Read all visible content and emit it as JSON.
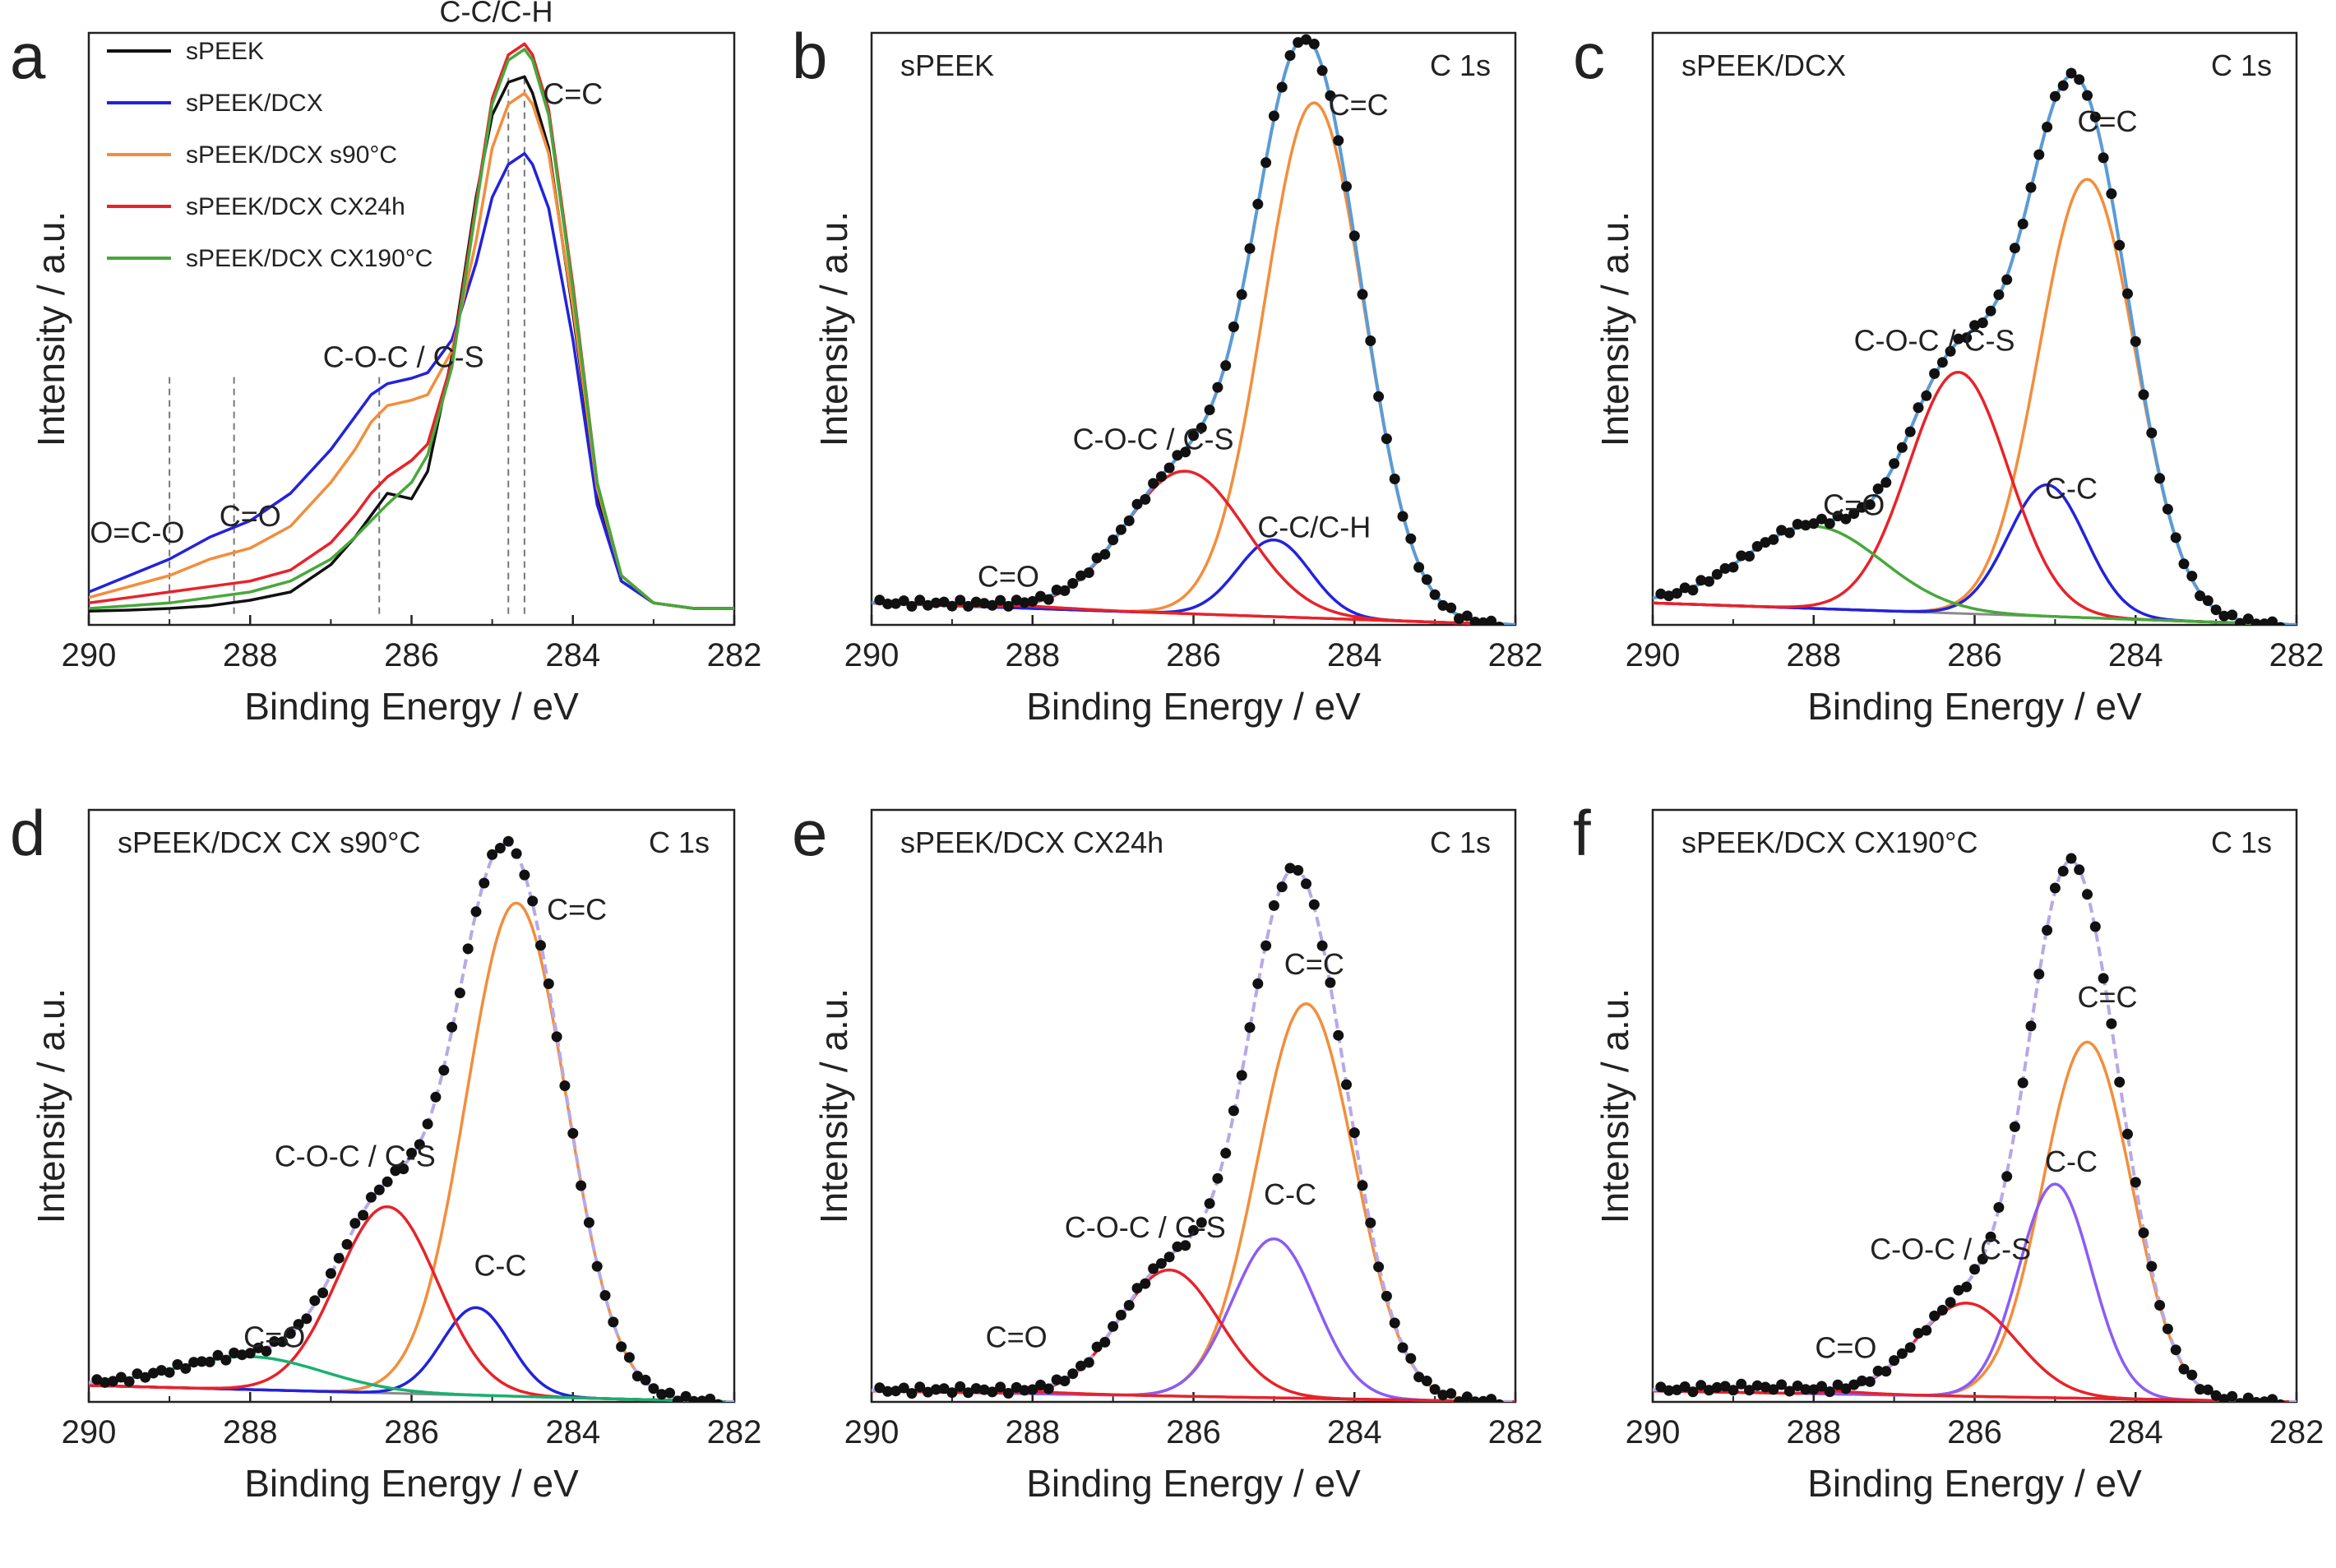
{
  "figure": {
    "description": "XPS C 1s spectra of sPEEK membranes",
    "colors": {
      "black": "#111111",
      "blue": "#2222dd",
      "orange": "#f28e3c",
      "red": "#e8222a",
      "green": "#47a83c",
      "fit": "#5b9bd5",
      "violet": "#8a5cf6",
      "baseline": "#888888",
      "teal": "#19b070",
      "envelope": "#b8a8e8"
    }
  },
  "chart_data": [
    {
      "panel": "a",
      "type": "line",
      "title": "",
      "xlabel": "Binding Energy / eV",
      "ylabel": "Intensity / a.u.",
      "xlim": [
        290,
        282
      ],
      "xticks": [
        "290",
        "288",
        "286",
        "284",
        "282"
      ],
      "legend": [
        {
          "name": "sPEEK",
          "color": "#111111"
        },
        {
          "name": "sPEEK/DCX",
          "color": "#2222dd"
        },
        {
          "name": "sPEEK/DCX s90°C",
          "color": "#f28e3c"
        },
        {
          "name": "sPEEK/DCX CX24h",
          "color": "#e8222a"
        },
        {
          "name": "sPEEK/DCX CX190°C",
          "color": "#47a83c"
        }
      ],
      "series": [
        {
          "name": "sPEEK",
          "color": "#111111",
          "x": [
            290,
            289.5,
            289,
            288.5,
            288,
            287.5,
            287,
            286.7,
            286.5,
            286.3,
            286,
            285.8,
            285.5,
            285.2,
            285,
            284.8,
            284.6,
            284.5,
            284.3,
            284,
            283.7,
            283.4,
            283,
            282.5,
            282
          ],
          "y": [
            0.005,
            0.007,
            0.01,
            0.015,
            0.025,
            0.04,
            0.09,
            0.14,
            0.18,
            0.22,
            0.21,
            0.26,
            0.47,
            0.76,
            0.91,
            0.97,
            0.98,
            0.95,
            0.85,
            0.55,
            0.22,
            0.06,
            0.02,
            0.01,
            0.01
          ]
        },
        {
          "name": "sPEEK/DCX",
          "color": "#2222dd",
          "x": [
            290,
            289.5,
            289,
            288.5,
            288,
            287.5,
            287,
            286.7,
            286.5,
            286.3,
            286,
            285.8,
            285.5,
            285.2,
            285,
            284.8,
            284.6,
            284.5,
            284.3,
            284,
            283.7,
            283.4,
            283,
            282.5,
            282
          ],
          "y": [
            0.04,
            0.07,
            0.1,
            0.14,
            0.17,
            0.22,
            0.3,
            0.36,
            0.4,
            0.42,
            0.43,
            0.44,
            0.5,
            0.64,
            0.76,
            0.82,
            0.84,
            0.82,
            0.74,
            0.5,
            0.2,
            0.06,
            0.02,
            0.01,
            0.01
          ]
        },
        {
          "name": "sPEEK/DCX s90°C",
          "color": "#f28e3c",
          "x": [
            290,
            289.5,
            289,
            288.5,
            288,
            287.5,
            287,
            286.7,
            286.5,
            286.3,
            286,
            285.8,
            285.5,
            285.2,
            285,
            284.8,
            284.6,
            284.5,
            284.3,
            284,
            283.7,
            283.4,
            283,
            282.5,
            282
          ],
          "y": [
            0.03,
            0.05,
            0.07,
            0.1,
            0.12,
            0.16,
            0.24,
            0.3,
            0.35,
            0.38,
            0.39,
            0.4,
            0.48,
            0.68,
            0.85,
            0.93,
            0.95,
            0.93,
            0.84,
            0.56,
            0.23,
            0.07,
            0.02,
            0.01,
            0.01
          ]
        },
        {
          "name": "sPEEK/DCX CX24h",
          "color": "#e8222a",
          "x": [
            290,
            289.5,
            289,
            288.5,
            288,
            287.5,
            287,
            286.7,
            286.5,
            286.3,
            286,
            285.8,
            285.5,
            285.2,
            285,
            284.8,
            284.6,
            284.5,
            284.3,
            284,
            283.7,
            283.4,
            283,
            282.5,
            282
          ],
          "y": [
            0.02,
            0.03,
            0.04,
            0.05,
            0.06,
            0.08,
            0.13,
            0.18,
            0.22,
            0.25,
            0.28,
            0.31,
            0.46,
            0.75,
            0.94,
            1.02,
            1.04,
            1.02,
            0.92,
            0.6,
            0.24,
            0.07,
            0.02,
            0.01,
            0.01
          ]
        },
        {
          "name": "sPEEK/DCX CX190°C",
          "color": "#47a83c",
          "x": [
            290,
            289.5,
            289,
            288.5,
            288,
            287.5,
            287,
            286.7,
            286.5,
            286.3,
            286,
            285.8,
            285.5,
            285.2,
            285,
            284.8,
            284.6,
            284.5,
            284.3,
            284,
            283.7,
            283.4,
            283,
            282.5,
            282
          ],
          "y": [
            0.01,
            0.015,
            0.02,
            0.03,
            0.04,
            0.06,
            0.1,
            0.14,
            0.17,
            0.2,
            0.24,
            0.29,
            0.45,
            0.74,
            0.93,
            1.01,
            1.03,
            1.01,
            0.91,
            0.59,
            0.24,
            0.07,
            0.02,
            0.01,
            0.01
          ]
        }
      ],
      "ylim": [
        0,
        1.08
      ],
      "vlines": [
        289.0,
        288.2,
        286.4,
        284.8,
        284.6
      ],
      "annotations": [
        "O=C-O",
        "C=O",
        "C-O-C / C-S",
        "C-C/C-H",
        "C=C"
      ]
    },
    {
      "panel": "b",
      "type": "line",
      "title": "sPEEK",
      "label_right": "C 1s",
      "xlabel": "Binding Energy / eV",
      "ylabel": "Intensity / a.u.",
      "xlim": [
        290,
        282
      ],
      "xticks": [
        "290",
        "288",
        "286",
        "284",
        "282"
      ],
      "ylim": [
        0,
        1.08
      ],
      "baseline": {
        "x": [
          290,
          282
        ],
        "y": [
          0.04,
          0.0
        ]
      },
      "components": [
        {
          "label": "C=C",
          "color": "#f28e3c",
          "center": 284.5,
          "height": 0.94,
          "width": 0.62
        },
        {
          "label": "C-C/C-H",
          "color": "#2222dd",
          "center": 285.0,
          "height": 0.14,
          "width": 0.45
        },
        {
          "label": "C-O-C / C-S",
          "color": "#e8222a",
          "center": 286.1,
          "height": 0.26,
          "width": 0.75
        },
        {
          "label": "C=O",
          "color": "#e8222a",
          "center": 288.5,
          "height": 0.005,
          "width": 0.8
        }
      ],
      "fit_color": "#5b9bd5",
      "annotations": [
        "C=O",
        "C-O-C / C-S",
        "C-C/C-H",
        "C=C"
      ]
    },
    {
      "panel": "c",
      "type": "line",
      "title": "sPEEK/DCX",
      "label_right": "C 1s",
      "xlabel": "Binding Energy / eV",
      "ylabel": "Intensity / a.u.",
      "xlim": [
        290,
        282
      ],
      "xticks": [
        "290",
        "288",
        "286",
        "284",
        "282"
      ],
      "ylim": [
        0,
        1.08
      ],
      "baseline": {
        "x": [
          290,
          282
        ],
        "y": [
          0.04,
          0.0
        ]
      },
      "components": [
        {
          "label": "C=C",
          "color": "#f28e3c",
          "center": 284.6,
          "height": 0.8,
          "width": 0.6
        },
        {
          "label": "C-C",
          "color": "#2222dd",
          "center": 285.1,
          "height": 0.24,
          "width": 0.48
        },
        {
          "label": "C-O-C / C-S",
          "color": "#e8222a",
          "center": 286.2,
          "height": 0.44,
          "width": 0.62
        },
        {
          "label": "C=O",
          "color": "#47a83c",
          "center": 288.0,
          "height": 0.15,
          "width": 0.85
        }
      ],
      "fit_color": "#5b9bd5",
      "annotations": [
        "C=O",
        "C-O-C / C-S",
        "C-C",
        "C=C"
      ]
    },
    {
      "panel": "d",
      "type": "line",
      "title": "sPEEK/DCX CX s90°C",
      "label_right": "C 1s",
      "xlabel": "Binding Energy / eV",
      "ylabel": "Intensity / a.u.",
      "xlim": [
        290,
        282
      ],
      "xticks": [
        "290",
        "288",
        "286",
        "284",
        "282"
      ],
      "ylim": [
        0,
        1.08
      ],
      "baseline": {
        "x": [
          290,
          282
        ],
        "y": [
          0.03,
          0.0
        ]
      },
      "components": [
        {
          "label": "C=C",
          "color": "#f28e3c",
          "center": 284.7,
          "height": 0.9,
          "width": 0.62
        },
        {
          "label": "C-C",
          "color": "#2222dd",
          "center": 285.2,
          "height": 0.16,
          "width": 0.42
        },
        {
          "label": "C-O-C / C-S",
          "color": "#e8222a",
          "center": 286.3,
          "height": 0.34,
          "width": 0.62
        },
        {
          "label": "C=O",
          "color": "#19b070",
          "center": 288.0,
          "height": 0.06,
          "width": 0.9
        }
      ],
      "fit_color": "#b8a8e8",
      "annotations": [
        "C=O",
        "C-O-C / C-S",
        "C-C",
        "C=C"
      ]
    },
    {
      "panel": "e",
      "type": "line",
      "title": "sPEEK/DCX CX24h",
      "label_right": "C 1s",
      "xlabel": "Binding Energy / eV",
      "ylabel": "Intensity / a.u.",
      "xlim": [
        290,
        282
      ],
      "xticks": [
        "290",
        "288",
        "286",
        "284",
        "282"
      ],
      "ylim": [
        0,
        1.08
      ],
      "baseline": {
        "x": [
          290,
          282
        ],
        "y": [
          0.02,
          0.0
        ]
      },
      "components": [
        {
          "label": "C=C",
          "color": "#f28e3c",
          "center": 284.6,
          "height": 0.72,
          "width": 0.6
        },
        {
          "label": "C-C",
          "color": "#8a5cf6",
          "center": 285.0,
          "height": 0.29,
          "width": 0.52
        },
        {
          "label": "C-O-C / C-S",
          "color": "#e8222a",
          "center": 286.3,
          "height": 0.23,
          "width": 0.62
        },
        {
          "label": "C=O",
          "color": "#e8222a",
          "center": 288.6,
          "height": 0.005,
          "width": 0.8
        }
      ],
      "fit_color": "#b8a8e8",
      "annotations": [
        "C=O",
        "C-O-C / C-S",
        "C-C",
        "C=C"
      ]
    },
    {
      "panel": "f",
      "type": "line",
      "title": "sPEEK/DCX CX190°C",
      "label_right": "C 1s",
      "xlabel": "Binding Energy / eV",
      "ylabel": "Intensity / a.u.",
      "xlim": [
        290,
        282
      ],
      "xticks": [
        "290",
        "288",
        "286",
        "284",
        "282"
      ],
      "ylim": [
        0,
        1.08
      ],
      "baseline": {
        "x": [
          290,
          282
        ],
        "y": [
          0.02,
          0.0
        ]
      },
      "components": [
        {
          "label": "C=C",
          "color": "#f28e3c",
          "center": 284.6,
          "height": 0.65,
          "width": 0.55
        },
        {
          "label": "C-C",
          "color": "#8a5cf6",
          "center": 285.0,
          "height": 0.39,
          "width": 0.45
        },
        {
          "label": "C-O-C / C-S",
          "color": "#e8222a",
          "center": 286.1,
          "height": 0.17,
          "width": 0.62
        },
        {
          "label": "C=O",
          "color": "#e8222a",
          "center": 288.6,
          "height": 0.01,
          "width": 0.8
        }
      ],
      "fit_color": "#b8a8e8",
      "annotations": [
        "C=O",
        "C-O-C / C-S",
        "C-C",
        "C=C"
      ]
    }
  ]
}
